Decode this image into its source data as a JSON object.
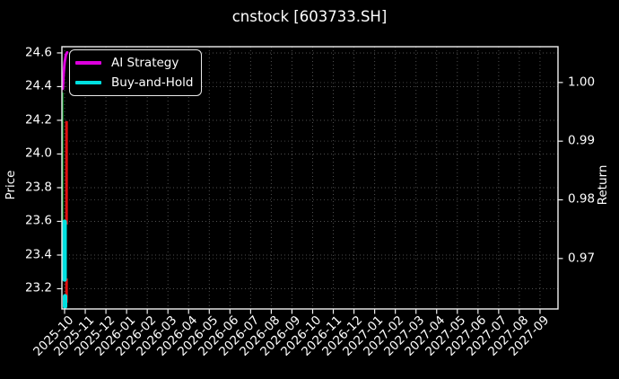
{
  "header": {
    "title": "cnstock [603733.SH]"
  },
  "chart_data": {
    "type": "candlestick",
    "title": "cnstock [603733.SH]",
    "ylabel_left": "Price",
    "ylabel_right": "Return",
    "grid": "dotted",
    "legend_position": "upper-left",
    "x_tick_labels": [
      "2025-10",
      "2025-11",
      "2025-12",
      "2026-01",
      "2026-02",
      "2026-03",
      "2026-04",
      "2026-05",
      "2026-06",
      "2026-07",
      "2026-08",
      "2026-09",
      "2026-10",
      "2026-11",
      "2026-12",
      "2027-01",
      "2027-02",
      "2027-03",
      "2027-04",
      "2027-05",
      "2027-06",
      "2027-07",
      "2027-08",
      "2027-09"
    ],
    "left_tick_labels": [
      "24.6",
      "24.4",
      "24.2",
      "24.0",
      "23.8",
      "23.6",
      "23.4",
      "23.2"
    ],
    "right_tick_labels": [
      "1.00",
      "0.99",
      "0.98",
      "0.97"
    ],
    "axes": {
      "left_range": [
        23.08,
        24.637
      ],
      "right_range": [
        0.9614,
        1.0061
      ],
      "x_range": [
        -0.13,
        23.87
      ]
    },
    "colors": {
      "background": "#000000",
      "axis": "#f0f0f0",
      "grid": "#4f4f4f",
      "grid_right": "#414141",
      "up": "#00a028",
      "down": "#e01010",
      "stub": "#4d0909",
      "ai_strategy": "#dd00dd",
      "buy_and_hold": "#00e0e0"
    },
    "legend": {
      "entries": [
        {
          "label": "AI Strategy",
          "color": "#dd00dd"
        },
        {
          "label": "Buy-and-Hold",
          "color": "#00e0e0"
        }
      ]
    },
    "candles": [
      {
        "kind": "wick",
        "color": "up",
        "x_month": -0.09,
        "high": 24.365,
        "low": 23.597,
        "w": 1.6
      },
      {
        "kind": "wick",
        "color": "down",
        "x_month": 0.095,
        "high": 24.195,
        "low": 23.581,
        "w": 3
      },
      {
        "kind": "wick",
        "color": "down",
        "x_month": 0.095,
        "high": 23.261,
        "low": 23.117,
        "w": 3
      },
      {
        "kind": "stub",
        "color": "stub",
        "x_month": 0.02,
        "high": 23.155,
        "low": 23.085,
        "w": 4.5
      }
    ],
    "lines": [
      {
        "name": "Buy-and-Hold",
        "color": "buy_and_hold",
        "w": 5,
        "segments": [
          [
            [
              0.0,
              23.597
            ],
            [
              0.0,
              23.255
            ]
          ],
          [
            [
              0.02,
              23.155
            ],
            [
              0.02,
              23.095
            ]
          ]
        ]
      },
      {
        "name": "AI Strategy",
        "color": "ai_strategy",
        "w": 3,
        "segments": [
          [
            [
              -0.085,
              24.388
            ],
            [
              -0.05,
              24.468
            ],
            [
              0.0,
              24.542
            ],
            [
              0.06,
              24.588
            ],
            [
              0.12,
              24.603
            ]
          ]
        ]
      }
    ]
  }
}
